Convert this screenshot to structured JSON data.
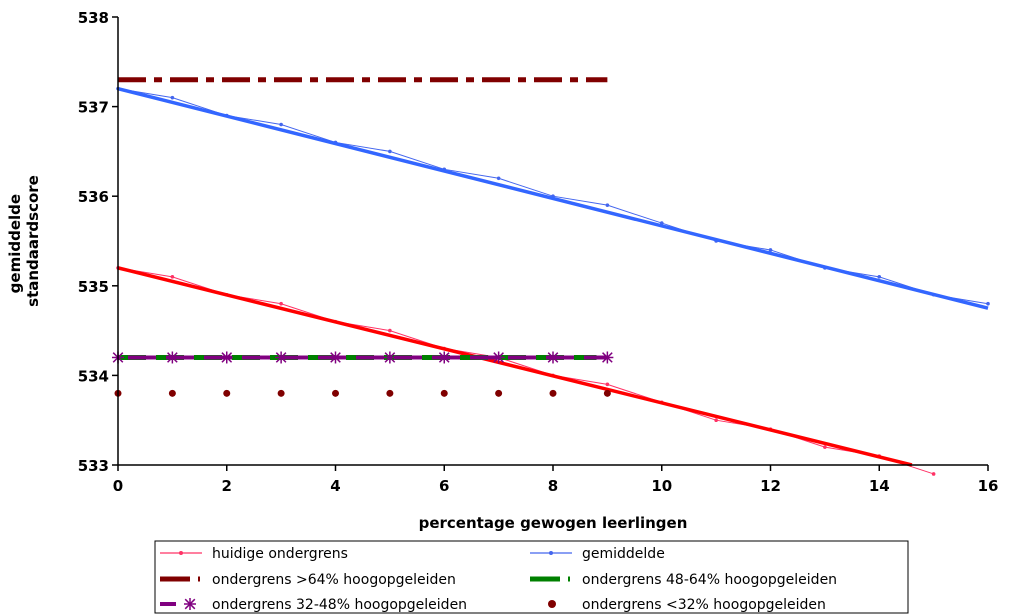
{
  "chart_data": {
    "type": "line",
    "xlabel": "percentage gewogen leerlingen",
    "ylabel_lines": [
      "gemiddelde",
      "standaardscore"
    ],
    "xlim": [
      0,
      16
    ],
    "ylim": [
      533,
      538
    ],
    "x_ticks": [
      "0",
      "2",
      "4",
      "6",
      "8",
      "10",
      "12",
      "14",
      "16"
    ],
    "y_ticks": [
      "533",
      "534",
      "535",
      "536",
      "537",
      "538"
    ],
    "grid": false,
    "legend_position": "bottom",
    "series": [
      {
        "name": "huidige ondergrens",
        "color": "#ff3366",
        "marker": "dot",
        "x": [
          0,
          1,
          2,
          3,
          4,
          5,
          6,
          7,
          8,
          9,
          10,
          11,
          12,
          13,
          14,
          15
        ],
        "y": [
          535.2,
          535.1,
          534.9,
          534.8,
          534.6,
          534.5,
          534.3,
          534.2,
          534.0,
          533.9,
          533.7,
          533.5,
          533.4,
          533.2,
          533.1,
          532.9
        ],
        "trendline": {
          "color": "#ff0000",
          "x": [
            0,
            14.6
          ],
          "y": [
            535.2,
            533.0
          ]
        }
      },
      {
        "name": "gemiddelde",
        "color": "#4466ee",
        "marker": "dot",
        "x": [
          0,
          1,
          2,
          3,
          4,
          5,
          6,
          7,
          8,
          9,
          10,
          11,
          12,
          13,
          14,
          15,
          16
        ],
        "y": [
          537.2,
          537.1,
          536.9,
          536.8,
          536.6,
          536.5,
          536.3,
          536.2,
          536.0,
          535.9,
          535.7,
          535.5,
          535.4,
          535.2,
          535.1,
          534.9,
          534.8
        ],
        "trendline": {
          "color": "#3366ff",
          "x": [
            0,
            16
          ],
          "y": [
            537.2,
            534.75
          ]
        }
      },
      {
        "name": "ondergrens >64% hoogopgeleiden",
        "color": "#800000",
        "style": "dash-dot",
        "x": [
          0,
          9
        ],
        "y": [
          537.3,
          537.3
        ]
      },
      {
        "name": "ondergrens 48-64% hoogopgeleiden",
        "color": "#008000",
        "style": "dashed",
        "x": [
          0,
          8.8
        ],
        "y": [
          534.2,
          534.2
        ]
      },
      {
        "name": "ondergrens 32-48% hoogopgeleiden",
        "color": "#800080",
        "style": "dashed-star",
        "x": [
          0,
          1,
          2,
          3,
          4,
          5,
          6,
          7,
          8,
          9
        ],
        "y": [
          534.2,
          534.2,
          534.2,
          534.2,
          534.2,
          534.2,
          534.2,
          534.2,
          534.2,
          534.2
        ]
      },
      {
        "name": "ondergrens <32% hoogopgeleiden",
        "color": "#800000",
        "style": "dots",
        "x": [
          0,
          1,
          2,
          3,
          4,
          5,
          6,
          7,
          8,
          9
        ],
        "y": [
          533.8,
          533.8,
          533.8,
          533.8,
          533.8,
          533.8,
          533.8,
          533.8,
          533.8,
          533.8
        ]
      }
    ]
  }
}
